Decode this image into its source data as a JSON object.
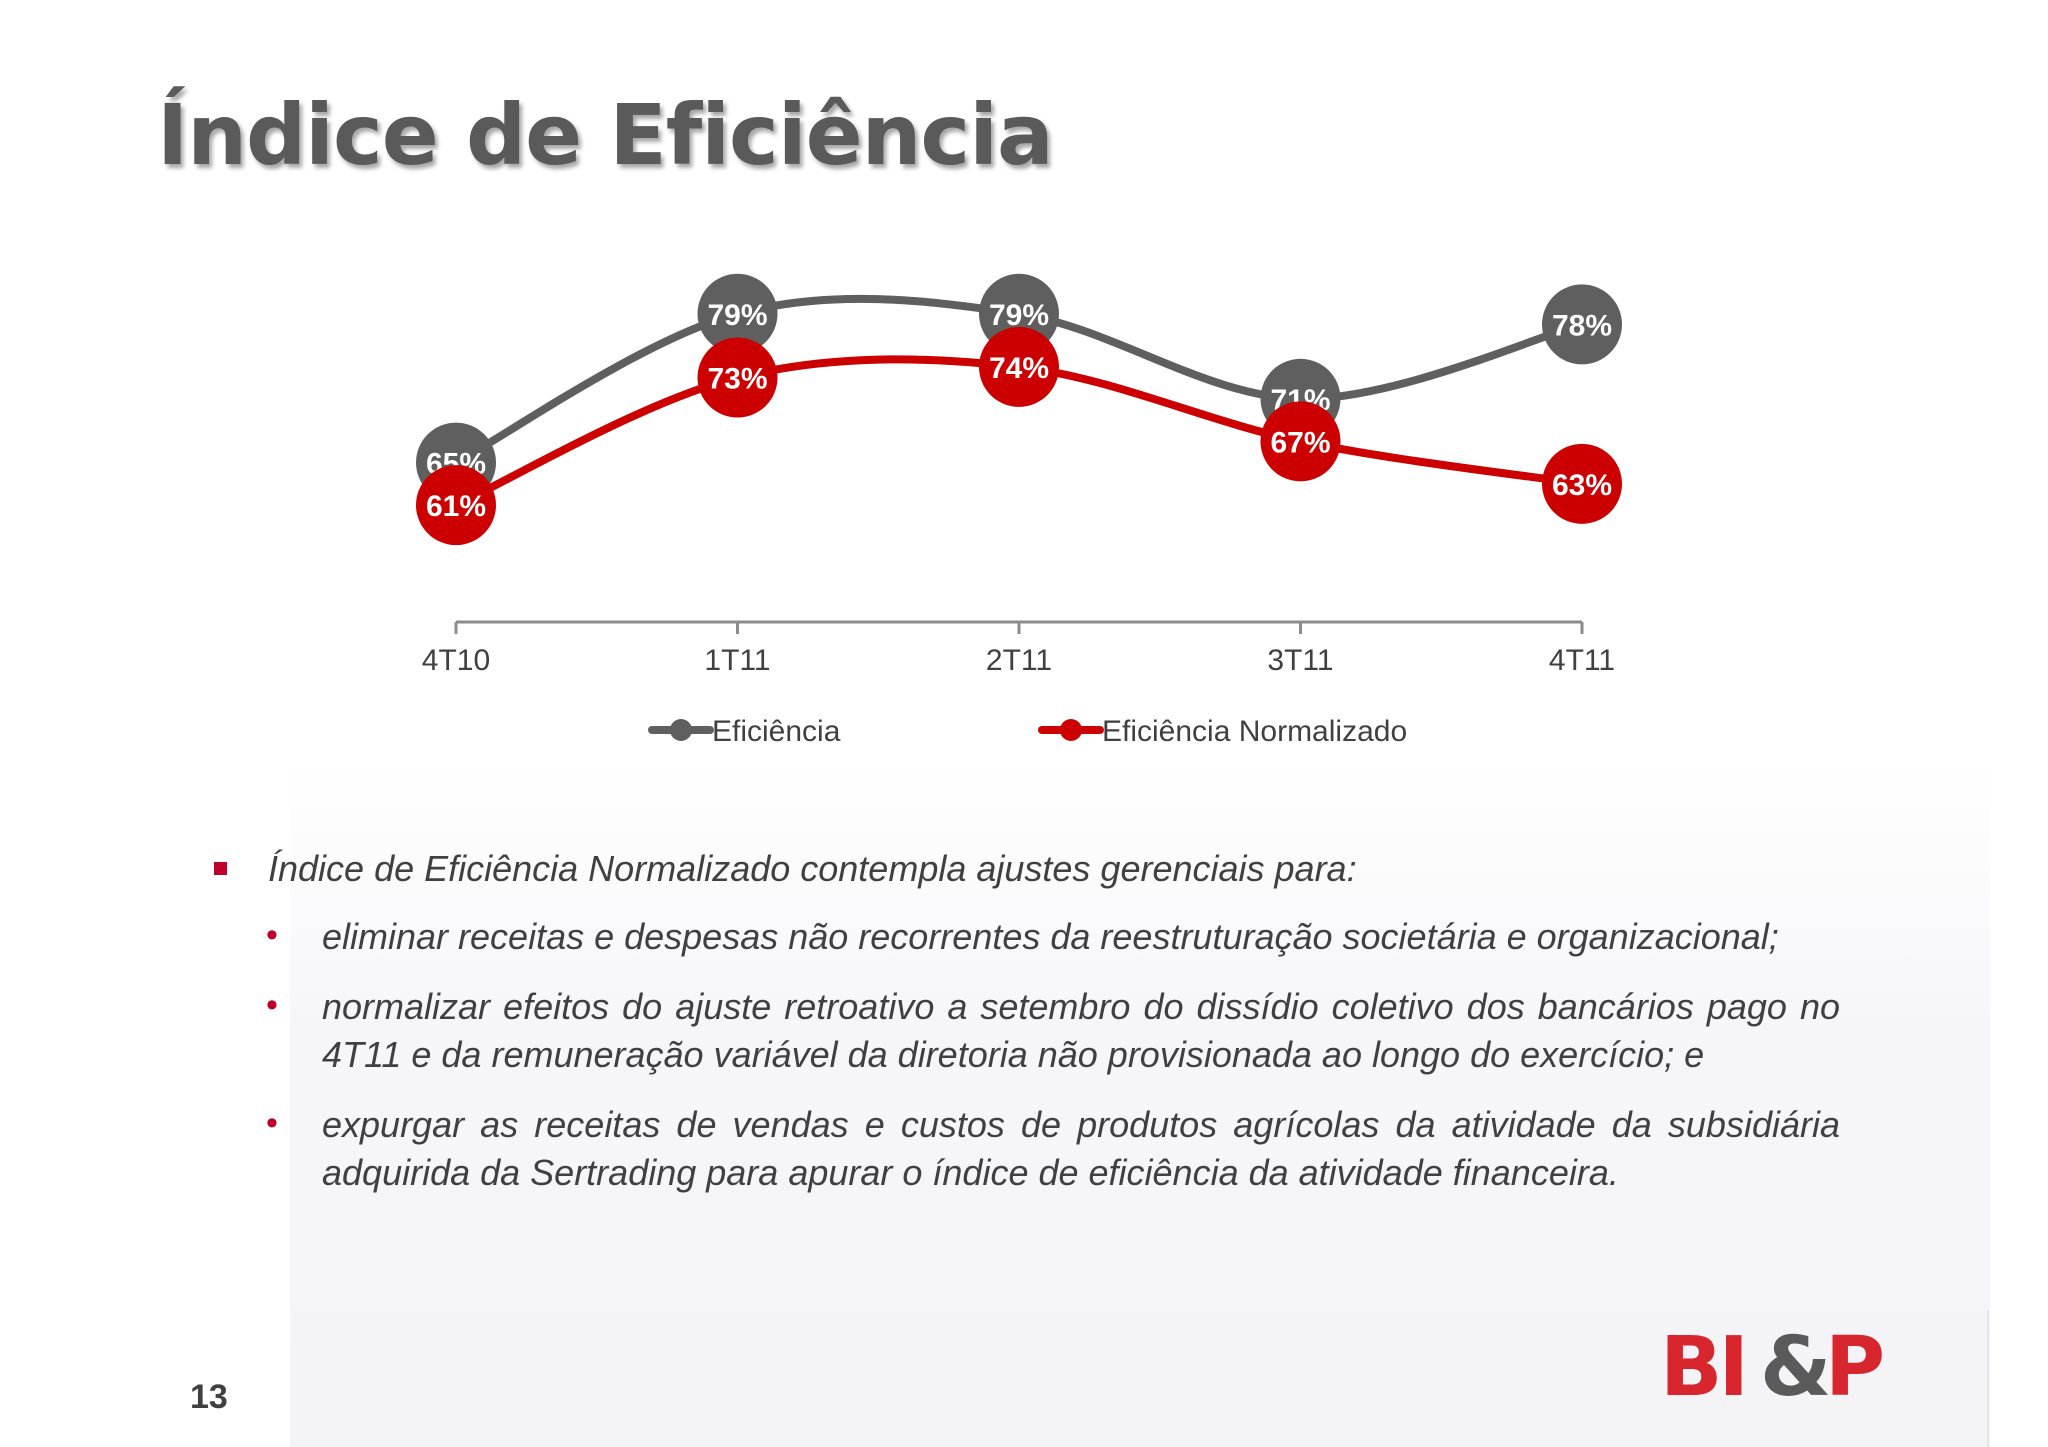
{
  "slide": {
    "title": "Índice de Eficiência",
    "page_number": "13",
    "logo_text": "BI&P"
  },
  "colors": {
    "efficiency": "#5f5f5f",
    "normalized": "#cc0000",
    "accent": "#c0002a",
    "text": "#404040"
  },
  "chart_data": {
    "type": "line",
    "categories": [
      "4T10",
      "1T11",
      "2T11",
      "3T11",
      "4T11"
    ],
    "series": [
      {
        "name": "Eficiência",
        "values": [
          65,
          79,
          79,
          71,
          78
        ],
        "labels": [
          "65%",
          "79%",
          "79%",
          "71%",
          "78%"
        ],
        "color": "#5f5f5f"
      },
      {
        "name": "Eficiência Normalizado",
        "values": [
          61,
          73,
          74,
          67,
          63
        ],
        "labels": [
          "61%",
          "73%",
          "74%",
          "67%",
          "63%"
        ],
        "color": "#cc0000"
      }
    ],
    "ylim": [
      50,
      85
    ],
    "smooth": true,
    "grid": false,
    "legend": "bottom",
    "xlabel": "",
    "ylabel": ""
  },
  "notes": {
    "intro": "Índice de Eficiência Normalizado contempla ajustes gerenciais para:",
    "items": [
      "eliminar receitas e despesas não recorrentes da reestruturação societária e organizacional;",
      "normalizar efeitos do ajuste retroativo a setembro do dissídio coletivo dos bancários pago no 4T11 e da remuneração variável da diretoria não provisionada ao longo do exercício; e",
      "expurgar as receitas de vendas e custos de produtos agrícolas da atividade da subsidiária adquirida da Sertrading para apurar o índice de eficiência da atividade financeira."
    ]
  }
}
